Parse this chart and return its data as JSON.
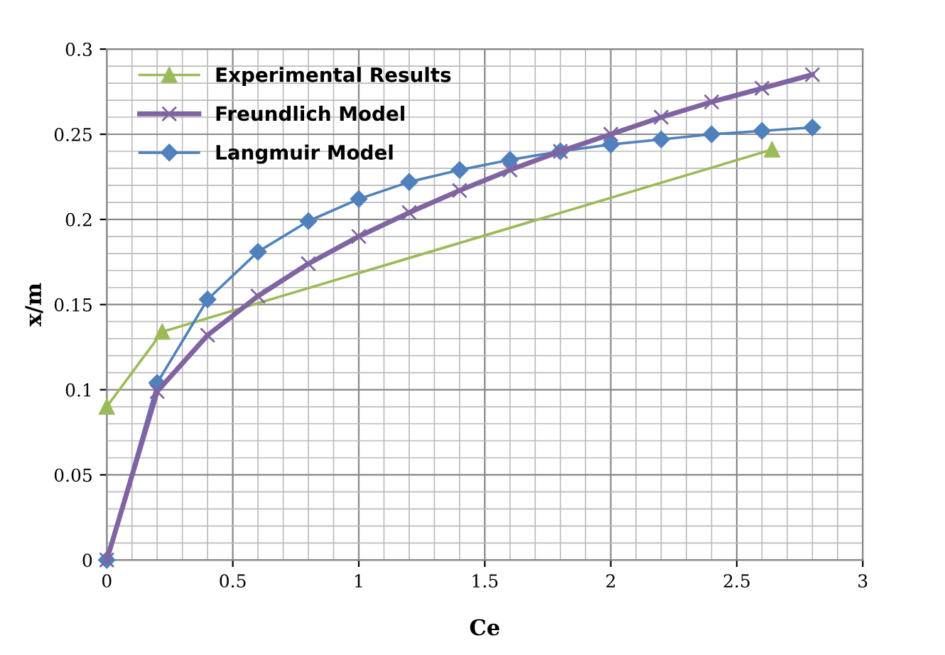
{
  "chart_data": {
    "type": "line",
    "xlabel": "Ce",
    "ylabel": "x/m",
    "xlim": [
      0,
      3
    ],
    "xticks": [
      0,
      0.5,
      1,
      1.5,
      2,
      2.5,
      3
    ],
    "ylim": [
      0,
      0.3
    ],
    "yticks": [
      0,
      0.05,
      0.1,
      0.15,
      0.2,
      0.25,
      0.3
    ],
    "grid": true,
    "legend": "top left",
    "series": [
      {
        "name": "Experimental Results",
        "color": "#9bbb59",
        "marker": "triangle",
        "x": [
          0,
          0.22,
          2.64
        ],
        "values": [
          0.09,
          0.134,
          0.241
        ]
      },
      {
        "name": "Freundlich Model",
        "color": "#8064a2",
        "marker": "cross",
        "x": [
          0,
          0.2,
          0.4,
          0.6,
          0.8,
          1.0,
          1.2,
          1.4,
          1.6,
          1.8,
          2.0,
          2.2,
          2.4,
          2.6,
          2.8
        ],
        "values": [
          0,
          0.099,
          0.132,
          0.155,
          0.174,
          0.19,
          0.204,
          0.217,
          0.229,
          0.24,
          0.25,
          0.26,
          0.269,
          0.277,
          0.285
        ]
      },
      {
        "name": "Langmuir Model",
        "color": "#4f81bd",
        "marker": "diamond",
        "x": [
          0,
          0.2,
          0.4,
          0.6,
          0.8,
          1.0,
          1.2,
          1.4,
          1.6,
          1.8,
          2.0,
          2.2,
          2.4,
          2.6,
          2.8
        ],
        "values": [
          0,
          0.104,
          0.153,
          0.181,
          0.199,
          0.212,
          0.222,
          0.229,
          0.235,
          0.24,
          0.244,
          0.247,
          0.25,
          0.252,
          0.254
        ]
      }
    ]
  }
}
